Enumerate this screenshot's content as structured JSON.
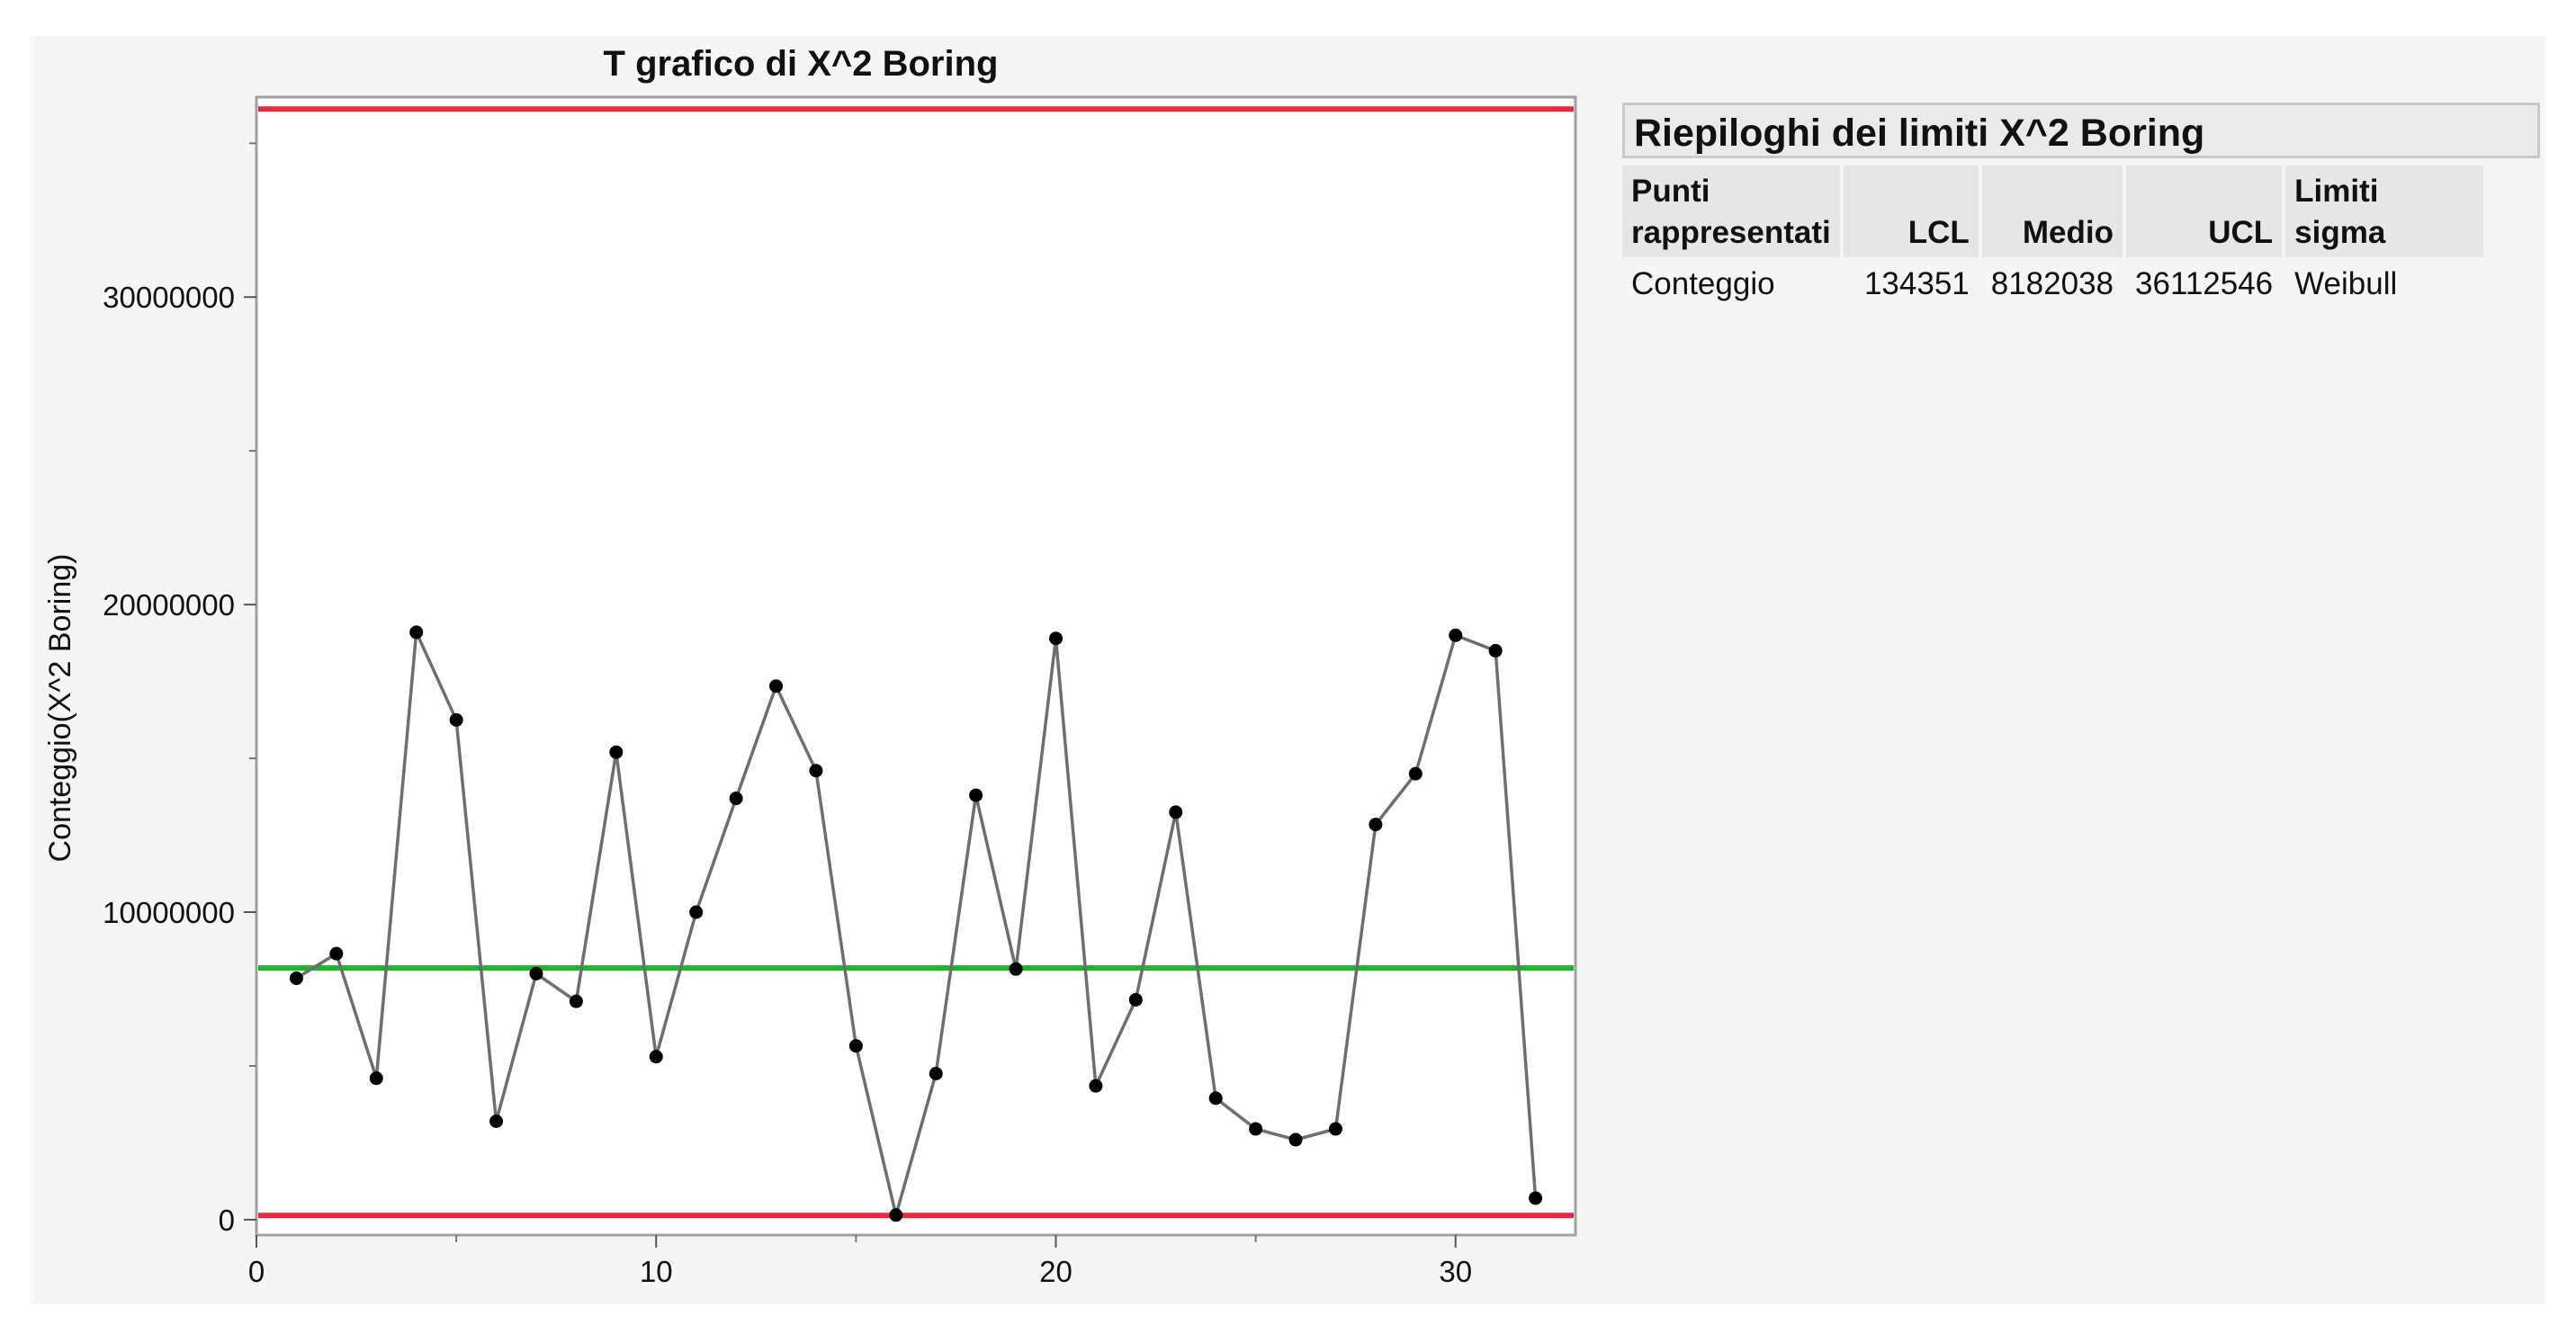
{
  "chart_data": {
    "type": "line",
    "title": "T grafico di X^2 Boring",
    "xlabel": "",
    "ylabel": "Conteggio(X^2 Boring)",
    "xlim": [
      0,
      33
    ],
    "ylim": [
      -500000,
      36500000
    ],
    "x_major_ticks": [
      0,
      10,
      20,
      30
    ],
    "x_minor_ticks": [
      5,
      15,
      25
    ],
    "y_major_ticks": [
      0,
      10000000,
      20000000,
      30000000
    ],
    "y_major_tick_labels": [
      "0",
      "10000000",
      "20000000",
      "30000000"
    ],
    "y_minor_ticks": [
      5000000,
      15000000,
      25000000,
      35000000
    ],
    "x_major_tick_labels": [
      "0",
      "10",
      "20",
      "30"
    ],
    "grid": false,
    "series": [
      {
        "x": [
          1,
          2,
          3,
          4,
          5,
          6,
          7,
          8,
          9,
          10,
          11,
          12,
          13,
          14,
          15,
          16,
          17,
          18,
          19,
          20,
          21,
          22,
          23,
          24,
          25,
          26,
          27,
          28,
          29,
          30,
          31,
          32
        ],
        "values": [
          7850000,
          8650000,
          4600000,
          19100000,
          16250000,
          3200000,
          8000000,
          7100000,
          15200000,
          5300000,
          10000000,
          13700000,
          17350000,
          14600000,
          5650000,
          150000,
          4750000,
          13800000,
          8150000,
          18900000,
          4350000,
          7150000,
          13250000,
          3950000,
          2950000,
          2600000,
          2950000,
          12850000,
          14500000,
          19000000,
          18500000,
          700000
        ],
        "color": "#6e6e6e",
        "marker_color": "#000000"
      }
    ],
    "limits": {
      "lcl": 134351,
      "center": 8182038,
      "ucl": 36112546,
      "limit_color": "#e8283c",
      "center_color": "#1db52a"
    }
  },
  "summary": {
    "title": "Riepiloghi dei limiti X^2 Boring",
    "headers": {
      "points_line1": "Punti",
      "points_line2": "rappresentati",
      "lcl": "LCL",
      "center": "Medio",
      "ucl": "UCL",
      "sigma": "Limiti sigma"
    },
    "row": {
      "points": "Conteggio",
      "lcl": "134351",
      "center": "8182038",
      "ucl": "36112546",
      "sigma": "Weibull"
    }
  }
}
